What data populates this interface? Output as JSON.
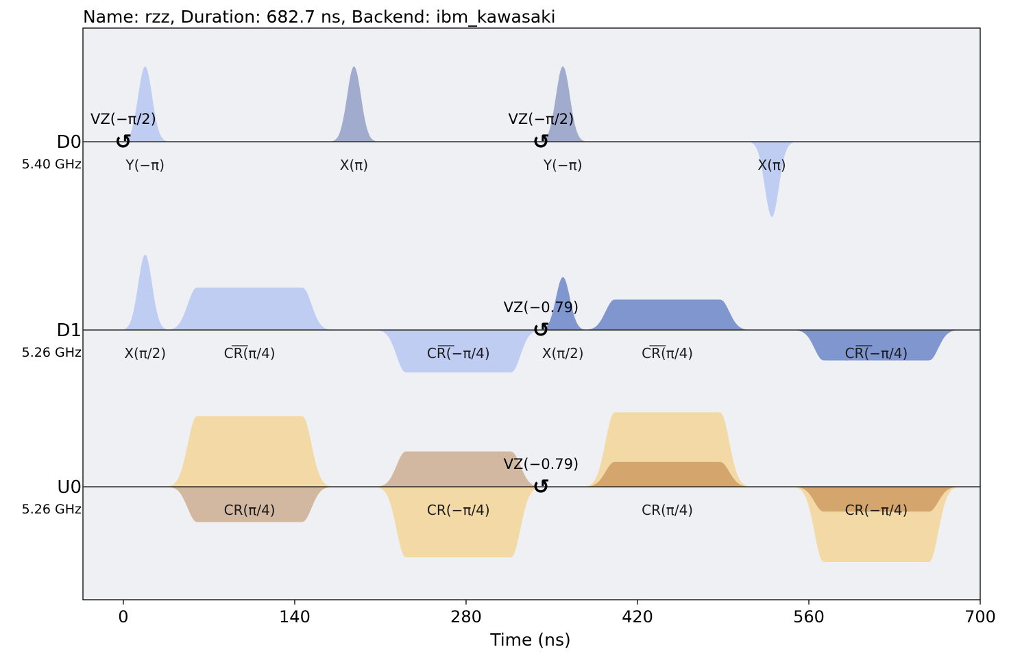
{
  "chart_data": {
    "type": "pulse-schedule",
    "title": "Name: rzz, Duration: 682.7 ns, Backend: ibm_kawasaki",
    "xlabel": "Time (ns)",
    "xlim": [
      -33,
      700
    ],
    "xticks": [
      "0",
      "140",
      "280",
      "420",
      "560",
      "700"
    ],
    "xtick_values": [
      0,
      140,
      280,
      420,
      560,
      700
    ],
    "channels": [
      {
        "name": "D0",
        "freq": "5.40 GHz"
      },
      {
        "name": "D1",
        "freq": "5.26 GHz"
      },
      {
        "name": "U0",
        "freq": "5.26 GHz"
      }
    ],
    "pulses": [
      {
        "channel": 0,
        "kind": "gauss",
        "t0": 0,
        "t1": 35.6,
        "amp": 0.94,
        "color": "#c0cdf2",
        "label": "Y(−π)"
      },
      {
        "channel": 0,
        "kind": "gauss",
        "t0": 170.7,
        "t1": 206.2,
        "amp": 0.94,
        "color": "#a0abce",
        "label": "X(π)"
      },
      {
        "channel": 0,
        "kind": "gauss",
        "t0": 341.3,
        "t1": 376.9,
        "amp": 0.94,
        "color": "#a0abce",
        "label": "Y(−π)"
      },
      {
        "channel": 0,
        "kind": "gauss",
        "t0": 512.0,
        "t1": 547.6,
        "amp": -0.94,
        "color": "#c0cdf2",
        "label": "X(π)"
      },
      {
        "channel": 1,
        "kind": "gauss",
        "t0": 0,
        "t1": 35.6,
        "amp": 0.94,
        "color": "#c0cdf2",
        "label": "X(π/2)"
      },
      {
        "channel": 1,
        "kind": "gsquare",
        "t0": 35.6,
        "t1": 170.7,
        "amp": 0.53,
        "color": "#c0cdf2",
        "label": "CR(π/4)"
      },
      {
        "channel": 1,
        "kind": "gsquare",
        "t0": 206.2,
        "t1": 341.3,
        "amp": -0.53,
        "color": "#c0cdf2",
        "label": "CR(−π/4)"
      },
      {
        "channel": 1,
        "kind": "gauss",
        "t0": 341.3,
        "t1": 376.9,
        "amp": 0.66,
        "color": "#7f96cf",
        "label": "X(π/2)"
      },
      {
        "channel": 1,
        "kind": "gsquare",
        "t0": 376.9,
        "t1": 512.0,
        "amp": 0.38,
        "color": "#7f96cf",
        "label": "CR(π/4)"
      },
      {
        "channel": 1,
        "kind": "gsquare",
        "t0": 547.6,
        "t1": 682.7,
        "amp": -0.38,
        "color": "#7f96cf",
        "label": "CR(−π/4)"
      },
      {
        "channel": 2,
        "kind": "gsquare",
        "t0": 35.6,
        "t1": 170.7,
        "amp": 0.88,
        "color": "#f2d9a5",
        "label": ""
      },
      {
        "channel": 2,
        "kind": "gsquare",
        "t0": 35.6,
        "t1": 170.7,
        "amp": -0.44,
        "color": "#d2b8a0",
        "label": "CR(π/4)"
      },
      {
        "channel": 2,
        "kind": "gsquare",
        "t0": 206.2,
        "t1": 341.3,
        "amp": 0.44,
        "color": "#d2b8a0",
        "label": ""
      },
      {
        "channel": 2,
        "kind": "gsquare",
        "t0": 206.2,
        "t1": 341.3,
        "amp": -0.88,
        "color": "#f2d9a5",
        "label": "CR(−π/4)"
      },
      {
        "channel": 2,
        "kind": "gsquare",
        "t0": 376.9,
        "t1": 512.0,
        "amp": 0.93,
        "color": "#f2d9a5",
        "label": ""
      },
      {
        "channel": 2,
        "kind": "gsquare",
        "t0": 376.9,
        "t1": 512.0,
        "amp": 0.31,
        "color": "#d4a66e",
        "label": "CR(π/4)"
      },
      {
        "channel": 2,
        "kind": "gsquare",
        "t0": 547.6,
        "t1": 682.7,
        "amp": -0.94,
        "color": "#f2d9a5",
        "label": ""
      },
      {
        "channel": 2,
        "kind": "gsquare",
        "t0": 547.6,
        "t1": 682.7,
        "amp": -0.31,
        "color": "#d4a66e",
        "label": "CR(−π/4)"
      }
    ],
    "phase_shifts": [
      {
        "channel": 0,
        "t": 0,
        "label": "VZ(−π/2)"
      },
      {
        "channel": 0,
        "t": 341.3,
        "label": "VZ(−π/2)"
      },
      {
        "channel": 1,
        "t": 341.3,
        "label": "VZ(−0.79)"
      },
      {
        "channel": 2,
        "t": 341.3,
        "label": "VZ(−0.79)"
      }
    ],
    "vz_symbol": "↺"
  }
}
